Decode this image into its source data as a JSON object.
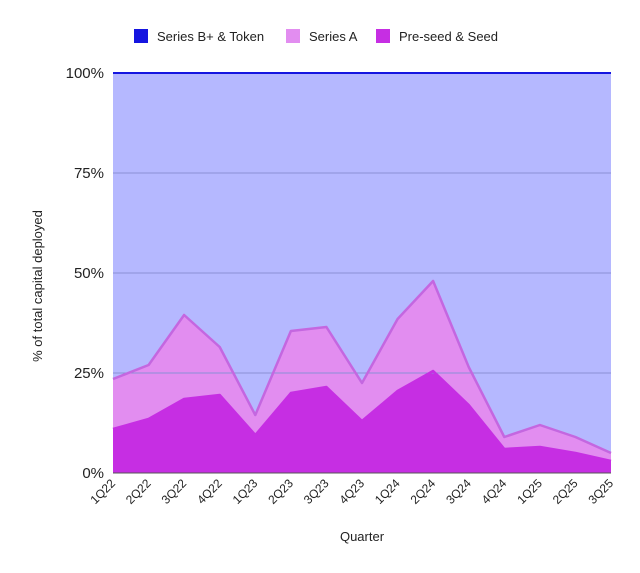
{
  "chart_data": {
    "type": "area",
    "stacked": true,
    "percent": true,
    "categories": [
      "1Q22",
      "2Q22",
      "3Q22",
      "4Q22",
      "1Q23",
      "2Q23",
      "3Q23",
      "4Q23",
      "1Q24",
      "2Q24",
      "3Q24",
      "4Q24",
      "1Q25",
      "2Q25",
      "3Q25"
    ],
    "series": [
      {
        "name": "Pre-seed & Seed",
        "color": "#c62ee3",
        "values": [
          11,
          13.5,
          18.5,
          19.5,
          9.5,
          20,
          21.5,
          13,
          20.5,
          25.5,
          17,
          6,
          6.5,
          5,
          3
        ]
      },
      {
        "name": "Series A",
        "color": "#e28df0",
        "values": [
          12.5,
          13.5,
          21,
          12,
          5,
          15.5,
          15,
          9.5,
          18,
          22.5,
          9.5,
          3,
          5.5,
          4,
          2
        ]
      },
      {
        "name": "Series B+ & Token",
        "color": "#b5b8ff",
        "values": [
          76.5,
          73,
          60.5,
          68.5,
          85.5,
          64.5,
          63.5,
          77.5,
          61.5,
          52,
          73.5,
          91,
          88,
          91,
          95
        ]
      }
    ],
    "legend": [
      {
        "name": "Series B+ & Token",
        "color": "#1515e0"
      },
      {
        "name": "Series A",
        "color": "#e28df0"
      },
      {
        "name": "Pre-seed & Seed",
        "color": "#c62ee3"
      }
    ],
    "yticks": [
      "0%",
      "25%",
      "50%",
      "75%",
      "100%"
    ],
    "ylim": [
      0,
      100
    ],
    "xlabel": "Quarter",
    "ylabel": "% of total capital deployed",
    "legend_position": "top",
    "grid": true
  }
}
